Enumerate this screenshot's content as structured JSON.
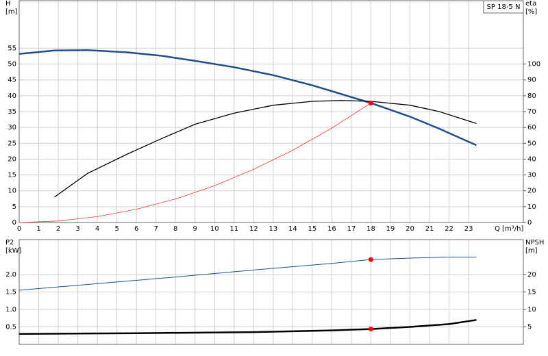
{
  "chart_data": [
    {
      "type": "line",
      "title": "SP 18-5 N",
      "y_label": [
        "H",
        "[m]"
      ],
      "y2_label": [
        "eta",
        "[%]"
      ],
      "x_label": "Q [m³/h]",
      "xlim": [
        0,
        25.8
      ],
      "xticks": [
        0,
        1,
        2,
        3,
        4,
        5,
        6,
        7,
        8,
        9,
        10,
        11,
        12,
        13,
        14,
        15,
        16,
        17,
        18,
        19,
        20,
        21,
        22,
        23
      ],
      "ylim": [
        0,
        70
      ],
      "yticks": [
        0,
        5,
        10,
        15,
        20,
        25,
        30,
        35,
        40,
        45,
        50,
        55
      ],
      "y2lim": [
        0,
        140
      ],
      "y2ticks": [
        0,
        10,
        20,
        30,
        40,
        50,
        60,
        70,
        80,
        90,
        100
      ],
      "grid": true,
      "series": [
        {
          "color": "#1f4e8c",
          "line_width": 2.5,
          "x": [
            0,
            1.8,
            3.5,
            5.5,
            7.3,
            9,
            11,
            13,
            15,
            16.5,
            18,
            20,
            21.5,
            23.4
          ],
          "values": [
            53.2,
            54.3,
            54.4,
            53.7,
            52.6,
            51.0,
            49.0,
            46.5,
            43.3,
            40.5,
            37.7,
            33.4,
            29.6,
            24.4
          ]
        },
        {
          "color": "#000000",
          "line_width": 1.3,
          "axis": "y2",
          "x": [
            1.8,
            3.5,
            5.5,
            7.3,
            9,
            11,
            13,
            15,
            16.5,
            18,
            20,
            21.5,
            23.4
          ],
          "values": [
            16,
            31,
            43,
            53,
            62,
            69,
            74,
            76.5,
            77,
            76.5,
            74,
            70,
            62.5
          ]
        },
        {
          "color": "#ff3030",
          "line_width": 0.8,
          "x": [
            0,
            2,
            4,
            6,
            8,
            10,
            12,
            14,
            16,
            18
          ],
          "values": [
            0,
            0.47,
            1.86,
            4.19,
            7.4,
            11.6,
            16.8,
            22.8,
            29.8,
            37.7
          ]
        },
        {
          "color": "#ff0000",
          "style": "point",
          "x": [
            18
          ],
          "values": [
            37.7
          ]
        }
      ]
    },
    {
      "type": "line",
      "y_label": [
        "P2",
        "[kW]"
      ],
      "y2_label": [
        "NPSH",
        "[m]"
      ],
      "xlim": [
        0,
        25.8
      ],
      "xticks": [
        0,
        1,
        2,
        3,
        4,
        5,
        6,
        7,
        8,
        9,
        10,
        11,
        12,
        13,
        14,
        15,
        16,
        17,
        18,
        19,
        20,
        21,
        22,
        23
      ],
      "ylim": [
        0,
        3
      ],
      "yticks": [
        0.5,
        {
          "value": 1,
          "label": "1.0"
        },
        1.5,
        {
          "value": 2,
          "label": "2.0"
        }
      ],
      "y2lim": [
        0,
        30
      ],
      "y2ticks": [
        5,
        10,
        15,
        20
      ],
      "grid": true,
      "series": [
        {
          "color": "#1f4e8c",
          "line_width": 1,
          "x": [
            0,
            4,
            8,
            12,
            16,
            18,
            20,
            22,
            23.4
          ],
          "values": [
            1.55,
            1.74,
            1.93,
            2.13,
            2.32,
            2.43,
            2.47,
            2.5,
            2.5
          ]
        },
        {
          "color": "#ff0000",
          "style": "point",
          "x": [
            18
          ],
          "values": [
            2.43
          ]
        },
        {
          "color": "#000000",
          "line_width": 2.5,
          "axis": "y2",
          "x": [
            0,
            6,
            12,
            16,
            18,
            20,
            22,
            23.4
          ],
          "values": [
            3.0,
            3.2,
            3.5,
            4.0,
            4.4,
            5.0,
            5.8,
            7.0
          ]
        },
        {
          "color": "#ff0000",
          "style": "point",
          "axis": "y2",
          "x": [
            18
          ],
          "values": [
            4.4
          ]
        }
      ]
    }
  ]
}
